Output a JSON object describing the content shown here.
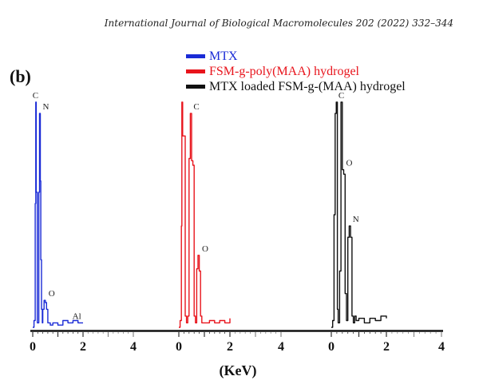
{
  "header": {
    "journal_line": "International Journal of Biological Macromolecules 202 (2022) 332–344"
  },
  "chart_data": {
    "type": "line",
    "panel_label": "(b)",
    "title": "",
    "xlabel": "(KeV)",
    "ylabel": "",
    "grid": false,
    "legend_position": "top-center",
    "xlim_per_panel": [
      0,
      4
    ],
    "tick_labels": [
      "0",
      "2",
      "4",
      "0",
      "2",
      "4",
      "0",
      "2",
      "4"
    ],
    "series": [
      {
        "name": "MTX",
        "color": "#1a2bd6",
        "x": [
          0.0,
          0.05,
          0.1,
          0.12,
          0.14,
          0.18,
          0.2,
          0.24,
          0.27,
          0.3,
          0.32,
          0.35,
          0.38,
          0.4,
          0.45,
          0.5,
          0.55,
          0.6,
          0.7,
          0.8,
          1.0,
          1.2,
          1.4,
          1.6,
          1.8,
          2.0
        ],
        "y": [
          0.0,
          0.03,
          0.55,
          1.0,
          0.6,
          0.02,
          0.02,
          0.6,
          0.95,
          0.65,
          0.3,
          0.08,
          0.02,
          0.08,
          0.12,
          0.11,
          0.08,
          0.02,
          0.01,
          0.02,
          0.01,
          0.03,
          0.02,
          0.03,
          0.02,
          0.02
        ],
        "peaks": [
          {
            "label": "C",
            "x": 0.12
          },
          {
            "label": "N",
            "x": 0.27
          },
          {
            "label": "O",
            "x": 0.5
          },
          {
            "label": "Al",
            "x": 1.45
          }
        ]
      },
      {
        "name": "FSM-g-poly(MAA) hydrogel",
        "color": "#e8141c",
        "x": [
          0.0,
          0.05,
          0.1,
          0.12,
          0.15,
          0.2,
          0.25,
          0.3,
          0.35,
          0.4,
          0.45,
          0.5,
          0.55,
          0.6,
          0.65,
          0.7,
          0.75,
          0.8,
          0.85,
          0.9,
          1.0,
          1.2,
          1.4,
          1.6,
          1.8,
          2.0
        ],
        "y": [
          0.0,
          0.03,
          0.45,
          1.0,
          0.85,
          0.85,
          0.05,
          0.02,
          0.05,
          0.75,
          0.95,
          0.74,
          0.72,
          0.05,
          0.02,
          0.26,
          0.32,
          0.25,
          0.05,
          0.02,
          0.02,
          0.03,
          0.02,
          0.03,
          0.02,
          0.04
        ],
        "peaks": [
          {
            "label": "C",
            "x": 0.45
          },
          {
            "label": "O",
            "x": 0.78
          }
        ]
      },
      {
        "name": "MTX loaded FSM-g-(MAA) hydrogel",
        "color": "#111111",
        "x": [
          0.0,
          0.05,
          0.1,
          0.14,
          0.18,
          0.22,
          0.25,
          0.3,
          0.35,
          0.4,
          0.45,
          0.5,
          0.55,
          0.6,
          0.65,
          0.7,
          0.75,
          0.8,
          0.85,
          0.9,
          1.0,
          1.2,
          1.4,
          1.6,
          1.8,
          2.0
        ],
        "y": [
          0.0,
          0.03,
          0.5,
          0.95,
          1.0,
          0.08,
          0.02,
          0.25,
          1.0,
          0.7,
          0.68,
          0.15,
          0.03,
          0.4,
          0.45,
          0.4,
          0.05,
          0.02,
          0.05,
          0.03,
          0.04,
          0.02,
          0.04,
          0.03,
          0.05,
          0.04
        ],
        "peaks": [
          {
            "label": "C",
            "x": 0.14
          },
          {
            "label": "O",
            "x": 0.42
          },
          {
            "label": "N",
            "x": 0.66
          }
        ]
      }
    ]
  }
}
